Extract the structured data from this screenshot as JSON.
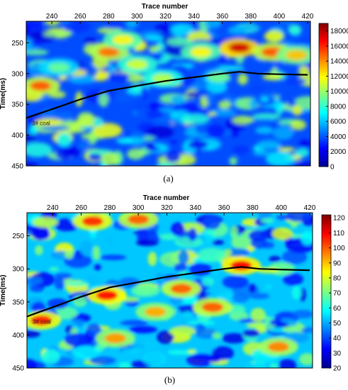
{
  "chart_data": [
    {
      "type": "heatmap",
      "caption": "(a)",
      "xlabel": "Trace number",
      "ylabel": "Time(ms)",
      "xlim": [
        222,
        422
      ],
      "ylim": [
        450,
        215
      ],
      "x_ticks": [
        240,
        260,
        280,
        300,
        320,
        340,
        360,
        380,
        400,
        420
      ],
      "y_ticks": [
        250,
        300,
        350,
        400,
        450
      ],
      "colorbar": {
        "min": 0,
        "max": 19000,
        "ticks": [
          0,
          2000,
          4000,
          6000,
          8000,
          10000,
          12000,
          14000,
          16000,
          18000
        ],
        "colormap": "jet"
      },
      "horizon": {
        "label": "3# coal",
        "x": [
          222,
          240,
          260,
          280,
          300,
          320,
          340,
          360,
          372,
          385,
          400,
          420
        ],
        "y": [
          372,
          358,
          342,
          328,
          320,
          312,
          306,
          300,
          297,
          300,
          301,
          302
        ]
      },
      "anomalies": [
        {
          "x": 232,
          "y": 320,
          "v": 15000
        },
        {
          "x": 245,
          "y": 290,
          "v": 9000
        },
        {
          "x": 280,
          "y": 265,
          "v": 14500
        },
        {
          "x": 290,
          "y": 245,
          "v": 12000
        },
        {
          "x": 300,
          "y": 285,
          "v": 11000
        },
        {
          "x": 318,
          "y": 308,
          "v": 10500
        },
        {
          "x": 345,
          "y": 265,
          "v": 12000
        },
        {
          "x": 372,
          "y": 258,
          "v": 17500
        },
        {
          "x": 395,
          "y": 265,
          "v": 15000
        },
        {
          "x": 412,
          "y": 270,
          "v": 13000
        }
      ]
    },
    {
      "type": "heatmap",
      "caption": "(b)",
      "xlabel": "Trace number",
      "ylabel": "Time(ms)",
      "xlim": [
        222,
        422
      ],
      "ylim": [
        450,
        215
      ],
      "x_ticks": [
        240,
        260,
        280,
        300,
        320,
        340,
        360,
        380,
        400,
        420
      ],
      "y_ticks": [
        250,
        300,
        350,
        400,
        450
      ],
      "colorbar": {
        "min": 20,
        "max": 122,
        "ticks": [
          20,
          30,
          40,
          50,
          60,
          70,
          80,
          90,
          100,
          110,
          120
        ],
        "colormap": "jet"
      },
      "horizon": {
        "label": "3# coal",
        "x": [
          222,
          240,
          260,
          280,
          300,
          320,
          340,
          360,
          372,
          385,
          400,
          420
        ],
        "y": [
          372,
          358,
          342,
          328,
          320,
          312,
          306,
          300,
          297,
          300,
          301,
          302
        ]
      },
      "anomalies": [
        {
          "x": 268,
          "y": 228,
          "v": 105
        },
        {
          "x": 300,
          "y": 225,
          "v": 100
        },
        {
          "x": 278,
          "y": 340,
          "v": 108
        },
        {
          "x": 232,
          "y": 378,
          "v": 106
        },
        {
          "x": 372,
          "y": 295,
          "v": 110
        },
        {
          "x": 330,
          "y": 330,
          "v": 100
        },
        {
          "x": 312,
          "y": 365,
          "v": 92
        },
        {
          "x": 352,
          "y": 358,
          "v": 100
        },
        {
          "x": 398,
          "y": 418,
          "v": 96
        },
        {
          "x": 284,
          "y": 405,
          "v": 94
        }
      ]
    }
  ]
}
